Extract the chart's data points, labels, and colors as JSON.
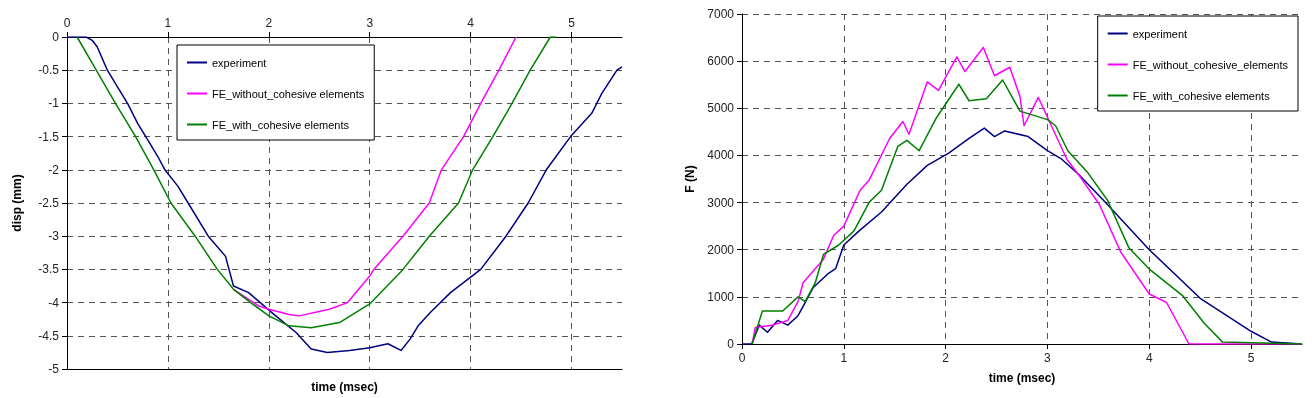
{
  "chart_data": [
    {
      "type": "line",
      "xlabel": "time (msec)",
      "ylabel": "disp (mm)",
      "xlim": [
        0,
        5.5
      ],
      "x2lim": [
        0,
        5.5
      ],
      "x2ticks": [
        0,
        1,
        2,
        3,
        4,
        5
      ],
      "ylim": [
        -5,
        0
      ],
      "yticks": [
        -5,
        -4.5,
        -4,
        -3.5,
        -3,
        -2.5,
        -2,
        -1.5,
        -1,
        -0.5,
        0
      ],
      "grid": true,
      "legend": "top",
      "line_style": "solid",
      "marker": "none",
      "series": [
        {
          "name": "experiment",
          "color": "#000080",
          "x": [
            0,
            0.1,
            0.19,
            0.25,
            0.3,
            0.4,
            0.5,
            0.6,
            0.7,
            0.8,
            0.9,
            0.97,
            1.1,
            1.2,
            1.4,
            1.57,
            1.65,
            1.8,
            2.03,
            2.27,
            2.42,
            2.58,
            2.8,
            3.0,
            3.18,
            3.31,
            3.4,
            3.48,
            3.6,
            3.8,
            4.1,
            4.35,
            4.57,
            4.75,
            4.99,
            5.2,
            5.3,
            5.45,
            5.5
          ],
          "values": [
            0,
            0,
            0,
            -0.05,
            -0.15,
            -0.5,
            -0.75,
            -1.0,
            -1.3,
            -1.55,
            -1.8,
            -2.0,
            -2.25,
            -2.5,
            -3.0,
            -3.3,
            -3.75,
            -3.85,
            -4.15,
            -4.45,
            -4.7,
            -4.75,
            -4.72,
            -4.68,
            -4.62,
            -4.72,
            -4.55,
            -4.35,
            -4.15,
            -3.85,
            -3.5,
            -3.0,
            -2.5,
            -2.0,
            -1.5,
            -1.15,
            -0.85,
            -0.5,
            -0.45
          ]
        },
        {
          "name": "FE_without_cohesive elements",
          "color": "#ff00ff",
          "x": [
            1.65,
            1.9,
            2.0,
            2.2,
            2.3,
            2.6,
            2.78,
            3.0,
            3.04,
            3.33,
            3.59,
            3.71,
            3.93,
            4.1,
            4.28,
            4.45
          ],
          "values": [
            -3.8,
            -4.05,
            -4.1,
            -4.18,
            -4.2,
            -4.1,
            -4.0,
            -3.6,
            -3.5,
            -3.0,
            -2.5,
            -2.0,
            -1.5,
            -1.0,
            -0.5,
            0
          ]
        },
        {
          "name": "FE_with_cohesive elements",
          "color": "#008000",
          "x": [
            0.1,
            0.29,
            0.48,
            0.68,
            0.86,
            1.03,
            1.27,
            1.49,
            1.65,
            1.82,
            2.0,
            2.2,
            2.42,
            2.7,
            3.0,
            3.33,
            3.59,
            3.88,
            4.02,
            4.22,
            4.41,
            4.59,
            4.79,
            4.85
          ],
          "values": [
            0,
            -0.5,
            -1.0,
            -1.5,
            -2.0,
            -2.5,
            -3.0,
            -3.5,
            -3.8,
            -4.0,
            -4.2,
            -4.35,
            -4.38,
            -4.3,
            -4.02,
            -3.5,
            -3.0,
            -2.5,
            -2.0,
            -1.5,
            -1.0,
            -0.5,
            0,
            0
          ]
        }
      ]
    },
    {
      "type": "line",
      "xlabel": "time (msec)",
      "ylabel": "F (N)",
      "xlim": [
        0,
        5.5
      ],
      "xticks": [
        0,
        1,
        2,
        3,
        4,
        5
      ],
      "ylim": [
        0,
        7000
      ],
      "yticks": [
        0,
        1000,
        2000,
        3000,
        4000,
        5000,
        6000,
        7000
      ],
      "grid": true,
      "legend": "top right",
      "line_style": "solid",
      "marker": "none",
      "series": [
        {
          "name": "experiment",
          "color": "#000080",
          "x": [
            0,
            0.095,
            0.17,
            0.25,
            0.35,
            0.45,
            0.55,
            0.6,
            0.7,
            0.75,
            0.85,
            0.92,
            1.0,
            1.15,
            1.37,
            1.62,
            1.82,
            2.03,
            2.23,
            2.38,
            2.48,
            2.58,
            2.81,
            3.0,
            3.14,
            3.3,
            3.55,
            4.0,
            4.5,
            5.0,
            5.2,
            5.5
          ],
          "values": [
            0,
            0,
            400,
            250,
            500,
            400,
            600,
            800,
            1200,
            1300,
            1500,
            1600,
            2100,
            2400,
            2800,
            3390,
            3790,
            4050,
            4360,
            4580,
            4400,
            4520,
            4400,
            4100,
            3920,
            3610,
            3050,
            2000,
            970,
            270,
            40,
            0
          ]
        },
        {
          "name": "FE_without_cohesive_elements",
          "color": "#ff00ff",
          "x": [
            0.1,
            0.13,
            0.3,
            0.45,
            0.55,
            0.6,
            0.8,
            0.9,
            1.0,
            1.16,
            1.25,
            1.45,
            1.58,
            1.64,
            1.82,
            1.93,
            2.11,
            2.19,
            2.37,
            2.48,
            2.63,
            2.73,
            2.77,
            2.91,
            3.0,
            3.19,
            3.33,
            3.51,
            3.72,
            4.0,
            4.17,
            4.39,
            5.5
          ],
          "values": [
            0,
            350,
            400,
            500,
            900,
            1300,
            1800,
            2300,
            2500,
            3260,
            3480,
            4360,
            4720,
            4450,
            5560,
            5380,
            6090,
            5780,
            6290,
            5690,
            5870,
            5250,
            4630,
            5230,
            4810,
            3920,
            3520,
            2960,
            1950,
            1060,
            880,
            0,
            0
          ]
        },
        {
          "name": "FE_with_cohesive elements",
          "color": "#008000",
          "x": [
            0.1,
            0.2,
            0.4,
            0.55,
            0.62,
            0.72,
            0.8,
            0.95,
            1.1,
            1.25,
            1.37,
            1.53,
            1.62,
            1.74,
            1.91,
            2.13,
            2.23,
            2.4,
            2.56,
            2.73,
            3.0,
            3.08,
            3.2,
            3.39,
            3.59,
            3.8,
            4.0,
            4.33,
            4.54,
            4.72,
            5.5
          ],
          "values": [
            0,
            700,
            700,
            1000,
            900,
            1300,
            1900,
            2100,
            2400,
            3010,
            3260,
            4190,
            4320,
            4100,
            4800,
            5510,
            5160,
            5200,
            5600,
            4940,
            4760,
            4630,
            4100,
            3650,
            3050,
            2040,
            1590,
            1020,
            440,
            40,
            0
          ]
        }
      ]
    }
  ]
}
